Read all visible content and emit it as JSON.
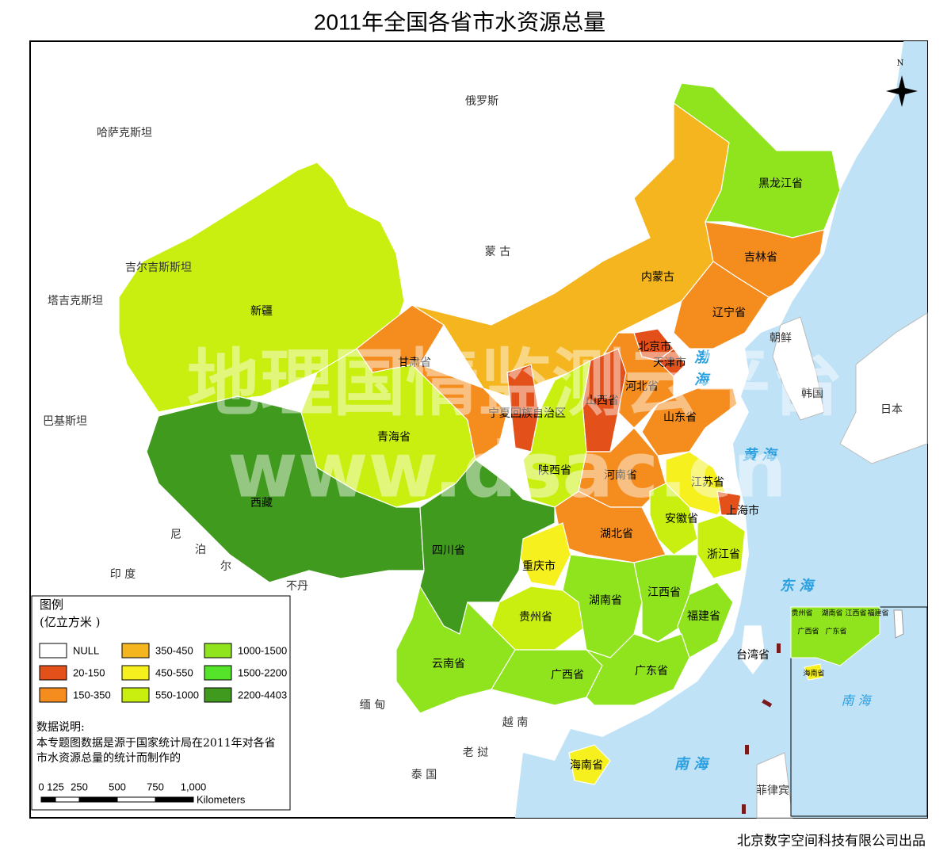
{
  "title": "2011年全国各省市水资源总量",
  "legend": {
    "title": "图例",
    "unit": "(亿立方米 )",
    "items": [
      {
        "label": "NULL",
        "color": "#ffffff"
      },
      {
        "label": "20-150",
        "color": "#e3501a"
      },
      {
        "label": "150-350",
        "color": "#f58c1e"
      },
      {
        "label": "350-450",
        "color": "#f5b51e"
      },
      {
        "label": "450-550",
        "color": "#f5f01e"
      },
      {
        "label": "550-1000",
        "color": "#c8ef10"
      },
      {
        "label": "1000-1500",
        "color": "#90e41e"
      },
      {
        "label": "1500-2200",
        "color": "#56e42a"
      },
      {
        "label": "2200-4403",
        "color": "#3f9a1e"
      }
    ]
  },
  "provinces": [
    {
      "name": "新疆",
      "class": "550-1000"
    },
    {
      "name": "西藏",
      "class": "2200-4403"
    },
    {
      "name": "青海省",
      "class": "550-1000"
    },
    {
      "name": "甘肃省",
      "class": "150-350"
    },
    {
      "name": "内蒙古",
      "class": "350-450"
    },
    {
      "name": "黑龙江省",
      "class": "1000-1500"
    },
    {
      "name": "吉林省",
      "class": "150-350"
    },
    {
      "name": "辽宁省",
      "class": "150-350"
    },
    {
      "name": "河北省",
      "class": "150-350"
    },
    {
      "name": "北京市",
      "class": "20-150"
    },
    {
      "name": "天津市",
      "class": "20-150"
    },
    {
      "name": "山西省",
      "class": "20-150"
    },
    {
      "name": "陕西省",
      "class": "550-1000"
    },
    {
      "name": "宁夏回族自治区",
      "class": "20-150"
    },
    {
      "name": "山东省",
      "class": "150-350"
    },
    {
      "name": "河南省",
      "class": "150-350"
    },
    {
      "name": "江苏省",
      "class": "450-550"
    },
    {
      "name": "上海市",
      "class": "20-150"
    },
    {
      "name": "安徽省",
      "class": "550-1000"
    },
    {
      "name": "浙江省",
      "class": "550-1000"
    },
    {
      "name": "湖北省",
      "class": "150-350"
    },
    {
      "name": "重庆市",
      "class": "450-550"
    },
    {
      "name": "四川省",
      "class": "2200-4403"
    },
    {
      "name": "贵州省",
      "class": "550-1000"
    },
    {
      "name": "湖南省",
      "class": "1000-1500"
    },
    {
      "name": "江西省",
      "class": "1000-1500"
    },
    {
      "name": "福建省",
      "class": "1000-1500"
    },
    {
      "name": "云南省",
      "class": "1000-1500"
    },
    {
      "name": "广西省",
      "class": "1000-1500"
    },
    {
      "name": "广东省",
      "class": "1000-1500"
    },
    {
      "name": "海南省",
      "class": "450-550"
    },
    {
      "name": "台湾省",
      "class": "NULL"
    }
  ],
  "countries": [
    "俄罗斯",
    "哈萨克斯坦",
    "蒙 古",
    "吉尔吉斯斯坦",
    "塔吉克斯坦",
    "巴基斯坦",
    "尼",
    "泊",
    "尔",
    "印 度",
    "不丹",
    "缅 甸",
    "越 南",
    "老 挝",
    "泰 国",
    "朝鲜",
    "韩国",
    "日本",
    "菲律宾"
  ],
  "seas": [
    "渤",
    "海",
    "黄 海",
    "东 海",
    "南 海"
  ],
  "inset": {
    "labels": [
      "贵州省",
      "湖南省",
      "江西省",
      "福建省",
      "广西省",
      "广东省",
      "海南省",
      "南 海"
    ]
  },
  "note": {
    "title": "数据说明:",
    "lines": [
      "本专题图数据是源于国家统计局在2011年对各省",
      "市水资源总量的统计而制作的"
    ]
  },
  "scale": {
    "ticks": [
      "0",
      "125",
      "250",
      "500",
      "750",
      "1,000"
    ],
    "unit": "Kilometers"
  },
  "compass": "N",
  "watermark": [
    "地理国情监测云平台",
    "www.dsac.cn"
  ],
  "credit": "北京数字空间科技有限公司出品"
}
